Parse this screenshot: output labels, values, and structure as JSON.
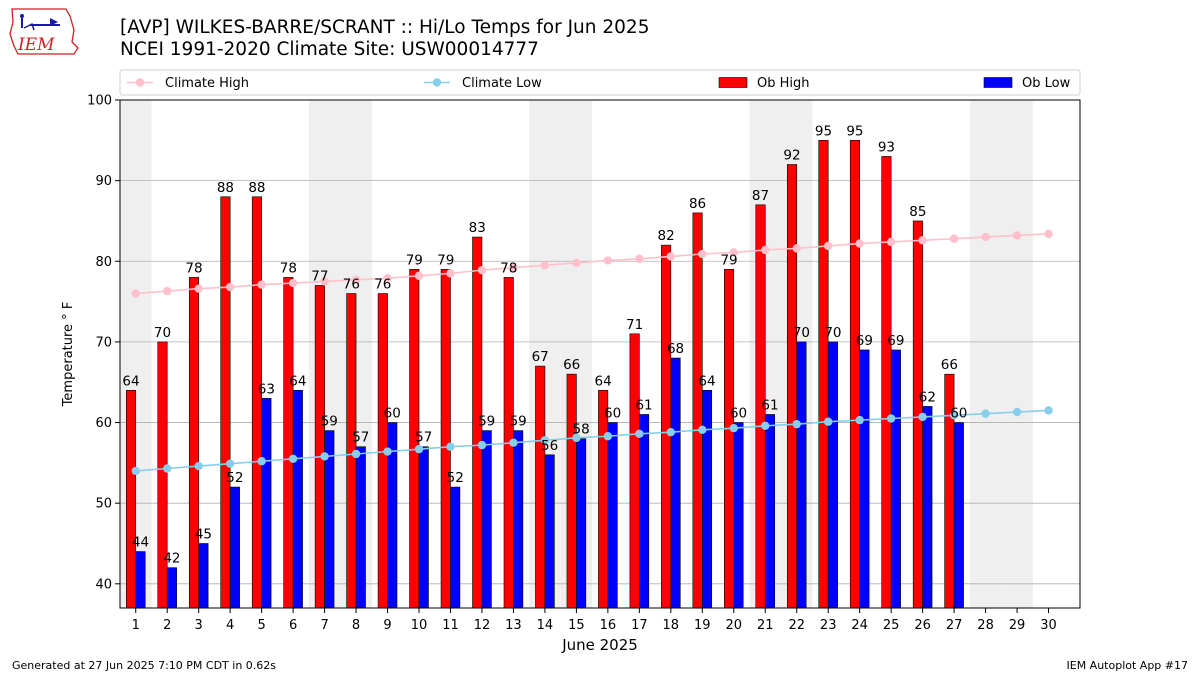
{
  "header": {
    "title": "[AVP] WILKES-BARRE/SCRANT :: Hi/Lo Temps for Jun 2025",
    "subtitle": "NCEI 1991-2020 Climate Site: USW00014777",
    "logo_text": "IEM"
  },
  "footer": {
    "generated": "Generated at 27 Jun 2025 7:10 PM CDT in 0.62s",
    "app": "IEM Autoplot App #17"
  },
  "colors": {
    "ob_high": "#ff0000",
    "ob_low": "#0000ff",
    "climate_high": "#ffc0cb",
    "climate_low": "#87ceeb",
    "weekend_band": "#efefef",
    "logo_red": "#cc2222",
    "logo_blue": "#1a1aa6"
  },
  "chart_data": {
    "type": "bar",
    "xlabel": "June 2025",
    "ylabel": "Temperature ° F",
    "ylim": [
      37,
      100
    ],
    "yticks": [
      40,
      50,
      60,
      70,
      80,
      90,
      100
    ],
    "grid": "horizontal",
    "legend_position": "top",
    "categories": [
      "1",
      "2",
      "3",
      "4",
      "5",
      "6",
      "7",
      "8",
      "9",
      "10",
      "11",
      "12",
      "13",
      "14",
      "15",
      "16",
      "17",
      "18",
      "19",
      "20",
      "21",
      "22",
      "23",
      "24",
      "25",
      "26",
      "27",
      "28",
      "29",
      "30"
    ],
    "weekend_days": [
      1,
      7,
      8,
      14,
      15,
      21,
      22,
      28,
      29
    ],
    "series": [
      {
        "name": "Ob High",
        "kind": "bar",
        "values": [
          64,
          70,
          78,
          88,
          88,
          78,
          77,
          76,
          76,
          79,
          79,
          83,
          78,
          67,
          66,
          64,
          71,
          82,
          86,
          79,
          87,
          92,
          95,
          95,
          93,
          85,
          66,
          null,
          null,
          null
        ]
      },
      {
        "name": "Ob Low",
        "kind": "bar",
        "values": [
          44,
          42,
          45,
          52,
          63,
          64,
          59,
          57,
          60,
          57,
          52,
          59,
          59,
          56,
          58,
          60,
          61,
          68,
          64,
          60,
          61,
          70,
          70,
          69,
          69,
          62,
          60,
          null,
          null,
          null
        ]
      },
      {
        "name": "Climate High",
        "kind": "line",
        "values": [
          76.0,
          76.3,
          76.6,
          76.8,
          77.1,
          77.3,
          77.5,
          77.7,
          77.9,
          78.2,
          78.5,
          78.9,
          79.2,
          79.5,
          79.8,
          80.1,
          80.3,
          80.6,
          80.9,
          81.1,
          81.4,
          81.6,
          81.9,
          82.2,
          82.4,
          82.6,
          82.8,
          83.0,
          83.2,
          83.4
        ]
      },
      {
        "name": "Climate Low",
        "kind": "line",
        "values": [
          54.0,
          54.3,
          54.6,
          54.9,
          55.2,
          55.5,
          55.8,
          56.1,
          56.4,
          56.7,
          57.0,
          57.2,
          57.5,
          57.8,
          58.1,
          58.3,
          58.6,
          58.8,
          59.1,
          59.3,
          59.6,
          59.8,
          60.1,
          60.3,
          60.5,
          60.7,
          60.9,
          61.1,
          61.3,
          61.5
        ]
      }
    ]
  }
}
